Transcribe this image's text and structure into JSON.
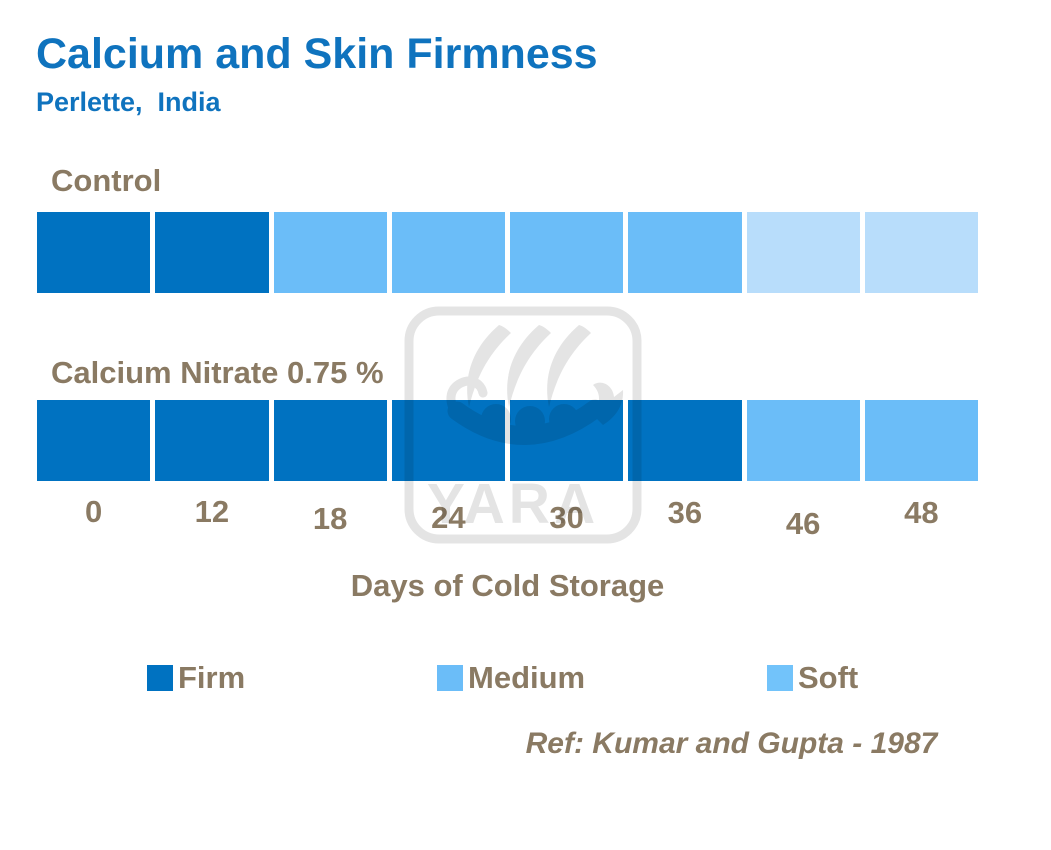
{
  "header": {
    "title": "Calcium and Skin Firmness",
    "subtitle": "Perlette,  India"
  },
  "colors": {
    "background": "#FFFFFF",
    "title-blue": "#0F73BE",
    "label-brown": "#8A7A63",
    "firm": "#0072C1",
    "medium": "#6BBDF8",
    "soft": "#B8DDFB",
    "soft-legend": "#72C3FA",
    "watermark": "#E4E4E4"
  },
  "chart_data": {
    "type": "bar",
    "subtype": "categorical-timeline",
    "title": "Calcium and Skin Firmness",
    "subtitle": "Perlette, India",
    "xlabel": "Days of Cold Storage",
    "x_unit": "days",
    "categories": [
      "0",
      "12",
      "18",
      "24",
      "30",
      "36",
      "46",
      "48"
    ],
    "legend_position": "bottom",
    "grid": false,
    "series": [
      {
        "name": "Control",
        "segments": [
          "firm",
          "firm",
          "medium",
          "medium",
          "medium",
          "medium",
          "soft",
          "soft"
        ]
      },
      {
        "name": "Calcium Nitrate 0.75 %",
        "segments": [
          "firm",
          "firm",
          "firm",
          "firm",
          "firm",
          "firm",
          "medium",
          "medium"
        ]
      }
    ],
    "legend": [
      {
        "label": "Firm",
        "color_key": "firm"
      },
      {
        "label": "Medium",
        "color_key": "medium"
      },
      {
        "label": "Soft",
        "color_key": "soft-legend"
      }
    ],
    "reference": "Ref: Kumar and Gupta - 1987"
  },
  "watermark": {
    "name": "yara-logo",
    "text": "YARA"
  }
}
